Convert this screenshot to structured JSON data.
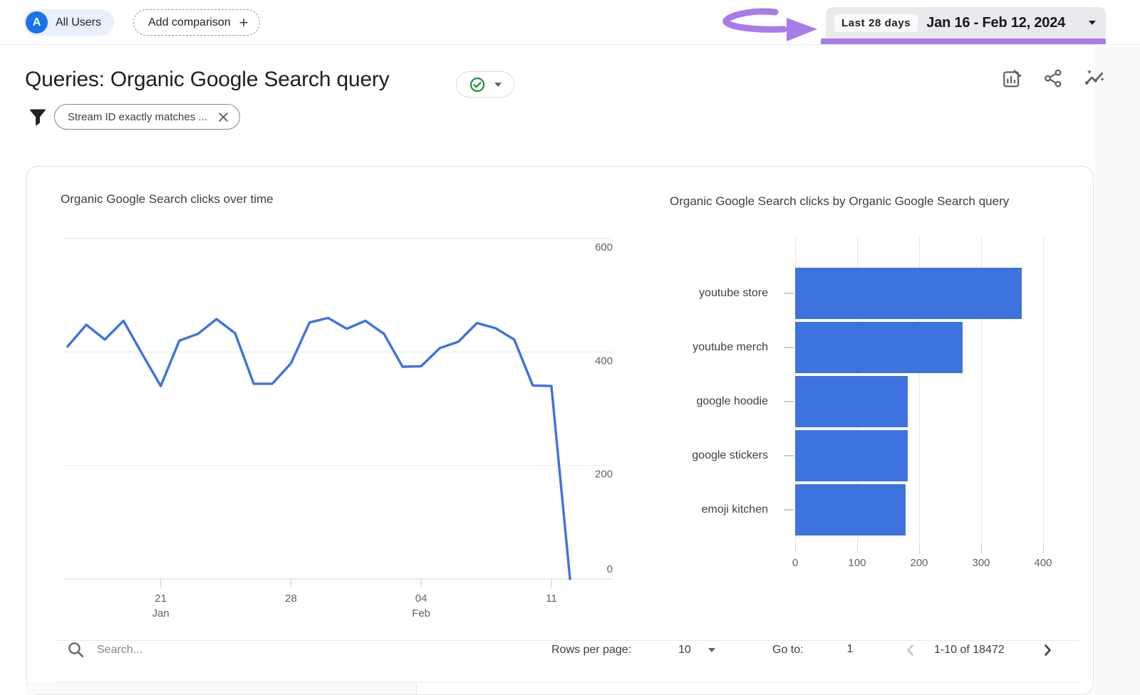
{
  "header": {
    "audience_chip": {
      "avatar_letter": "A",
      "label": "All Users"
    },
    "add_comparison_label": "Add comparison",
    "date_picker": {
      "preset": "Last 28 days",
      "range": "Jan 16 - Feb 12, 2024"
    }
  },
  "report": {
    "title": "Queries: Organic Google Search query",
    "filter_chip_label": "Stream ID exactly matches ..."
  },
  "colors": {
    "chart_blue": "#3E73DF",
    "annotation_purple": "#A87CE8",
    "accent_blue": "#1A73E8",
    "chip_background": "#E8F0FE"
  },
  "chart_data": [
    {
      "type": "line",
      "title": "Organic Google Search clicks over time",
      "line_color": "#3E73DF",
      "ylim": [
        0,
        600
      ],
      "y_ticks": [
        600,
        400,
        200,
        0
      ],
      "x_range": "Jan 16 - Feb 12, 2024",
      "x_ticks": [
        {
          "day_index": 5,
          "label": "21",
          "sublabel": "Jan"
        },
        {
          "day_index": 12,
          "label": "28",
          "sublabel": ""
        },
        {
          "day_index": 19,
          "label": "04",
          "sublabel": "Feb"
        },
        {
          "day_index": 26,
          "label": "11",
          "sublabel": ""
        }
      ],
      "dates": [
        "Jan 16",
        "Jan 17",
        "Jan 18",
        "Jan 19",
        "Jan 20",
        "Jan 21",
        "Jan 22",
        "Jan 23",
        "Jan 24",
        "Jan 25",
        "Jan 26",
        "Jan 27",
        "Jan 28",
        "Jan 29",
        "Jan 30",
        "Jan 31",
        "Feb 1",
        "Feb 2",
        "Feb 3",
        "Feb 4",
        "Feb 5",
        "Feb 6",
        "Feb 7",
        "Feb 8",
        "Feb 9",
        "Feb 10",
        "Feb 11",
        "Feb 12"
      ],
      "values": [
        410,
        448,
        422,
        455,
        397,
        340,
        420,
        432,
        458,
        433,
        344,
        344,
        380,
        452,
        460,
        441,
        455,
        432,
        374,
        375,
        407,
        418,
        451,
        442,
        422,
        341,
        340,
        0
      ]
    },
    {
      "type": "bar",
      "orientation": "horizontal",
      "title": "Organic Google Search clicks by Organic Google Search query",
      "bar_color": "#3E73DF",
      "xlim": [
        0,
        430
      ],
      "x_ticks": [
        0,
        100,
        200,
        300,
        400
      ],
      "categories": [
        "youtube store",
        "youtube merch",
        "google hoodie",
        "google stickers",
        "emoji kitchen"
      ],
      "values": [
        365,
        270,
        182,
        182,
        178
      ]
    }
  ],
  "table_toolbar": {
    "search_placeholder": "Search...",
    "rows_per_page_label": "Rows per page:",
    "rows_per_page_value": "10",
    "goto_label": "Go to:",
    "goto_value": "1",
    "pagination_range": "1-10 of 18472"
  }
}
